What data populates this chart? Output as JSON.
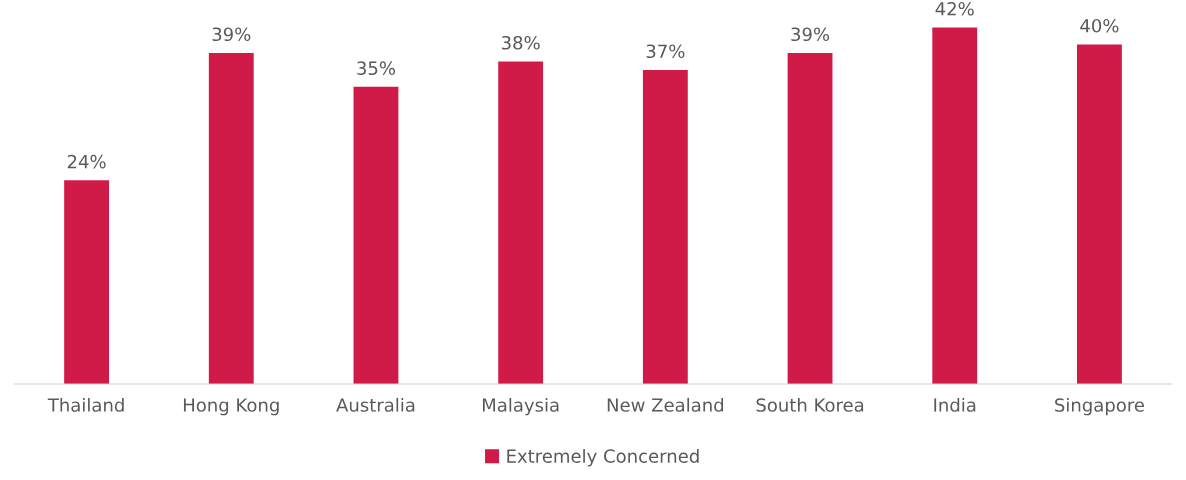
{
  "chart_data": {
    "type": "bar",
    "categories": [
      "Thailand",
      "Hong Kong",
      "Australia",
      "Malaysia",
      "New Zealand",
      "South Korea",
      "India",
      "Singapore"
    ],
    "series": [
      {
        "name": "Extremely Concerned",
        "color": "#d01a47",
        "values": [
          24,
          39,
          35,
          38,
          37,
          39,
          42,
          40
        ],
        "value_labels": [
          "24%",
          "39%",
          "35%",
          "38%",
          "37%",
          "39%",
          "42%",
          "40%"
        ]
      }
    ],
    "legend": "bottom",
    "grid": false
  }
}
